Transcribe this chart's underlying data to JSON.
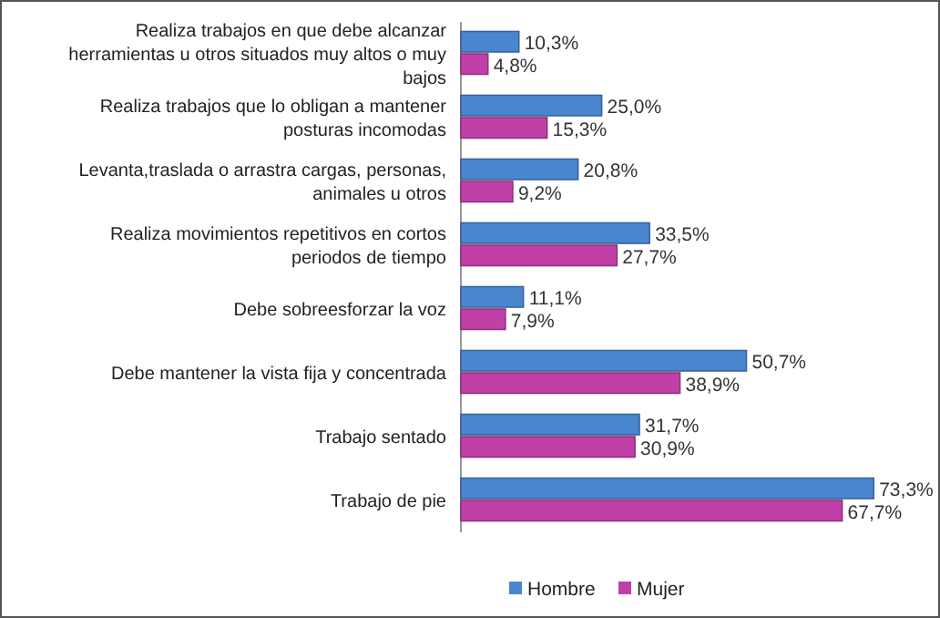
{
  "chart_data": {
    "type": "bar",
    "orientation": "horizontal",
    "categories": [
      "Realiza trabajos en que debe alcanzar herramientas u otros situados muy altos o muy bajos",
      "Realiza trabajos que lo obligan a mantener posturas incomodas",
      "Levanta,traslada o arrastra cargas, personas, animales u otros",
      "Realiza movimientos repetitivos en cortos periodos de tiempo",
      "Debe sobreesforzar la voz",
      "Debe mantener la vista fija y concentrada",
      "Trabajo sentado",
      "Trabajo de pie"
    ],
    "series": [
      {
        "name": "Hombre",
        "color": "#4a86d0",
        "values": [
          10.3,
          25.0,
          20.8,
          33.5,
          11.1,
          50.7,
          31.7,
          73.3
        ],
        "value_labels": [
          "10,3%",
          "25,0%",
          "20,8%",
          "33,5%",
          "11,1%",
          "50,7%",
          "31,7%",
          "73,3%"
        ]
      },
      {
        "name": "Mujer",
        "color": "#c040a8",
        "values": [
          4.8,
          15.3,
          9.2,
          27.7,
          7.9,
          38.9,
          30.9,
          67.7
        ],
        "value_labels": [
          "4,8%",
          "15,3%",
          "9,2%",
          "27,7%",
          "7,9%",
          "38,9%",
          "30,9%",
          "67,7%"
        ]
      }
    ],
    "legend": "bottom",
    "grid": false
  }
}
